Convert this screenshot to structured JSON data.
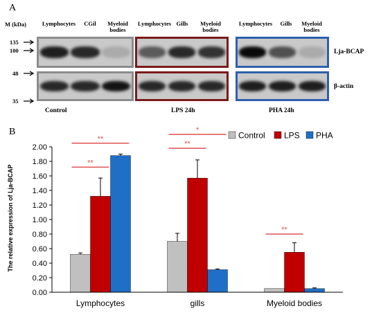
{
  "panel_a": {
    "letter": "A",
    "mw_header": "M (kDa)",
    "mw_markers": [
      "135",
      "100",
      "48",
      "35"
    ],
    "lane_headers": {
      "control": [
        "Lymphocytes",
        "CGil",
        "Myeloid bodies"
      ],
      "lps": [
        "Lymphocytes",
        "Gills",
        "Myeloid bodies"
      ],
      "pha": [
        "Lymphocytes",
        "Gills",
        "Myeloid bodies"
      ]
    },
    "row_labels": [
      "Lja-BCAP",
      "β-actin"
    ],
    "group_labels": [
      "Control",
      "LPS 24h",
      "PHA 24h"
    ],
    "box_colors": {
      "control": "#8c8c8c",
      "lps": "#7b1a1a",
      "pha": "#2e5fae"
    },
    "band_intensity": {
      "control_bcap": [
        0.85,
        0.8,
        0.15
      ],
      "control_actin": [
        0.8,
        0.8,
        0.9
      ],
      "lps_bcap": [
        0.55,
        0.8,
        0.75
      ],
      "lps_actin": [
        0.8,
        0.8,
        0.8
      ],
      "pha_bcap": [
        0.95,
        0.6,
        0.15
      ],
      "pha_actin": [
        0.85,
        0.85,
        0.85
      ]
    }
  },
  "panel_b": {
    "letter": "B"
  },
  "chart_data": {
    "type": "bar",
    "categories": [
      "Lymphocytes",
      "gills",
      "Myeloid bodies"
    ],
    "series": [
      {
        "name": "Control",
        "color": "#c0c0c0",
        "values": [
          0.52,
          0.7,
          0.05
        ],
        "errors": [
          0.02,
          0.11,
          0.0
        ]
      },
      {
        "name": "LPS",
        "color": "#c00000",
        "values": [
          1.32,
          1.57,
          0.55
        ],
        "errors": [
          0.25,
          0.25,
          0.13
        ]
      },
      {
        "name": "PHA",
        "color": "#1f6fc6",
        "values": [
          1.88,
          0.31,
          0.05
        ],
        "errors": [
          0.02,
          0.01,
          0.01
        ]
      }
    ],
    "ylabel": "The relative expression of Lja-BCAP",
    "xlabel": "",
    "ylim": [
      0,
      2.0
    ],
    "yticks": [
      "0.00",
      "0.20",
      "0.40",
      "0.60",
      "0.80",
      "1.00",
      "1.20",
      "1.40",
      "1.60",
      "1.80",
      "2.00"
    ],
    "legend_position": "top-right",
    "significance": [
      {
        "category": "Lymphocytes",
        "from": "Control",
        "to": "LPS",
        "label": "**"
      },
      {
        "category": "Lymphocytes",
        "from": "Control",
        "to": "PHA",
        "label": "**"
      },
      {
        "category": "gills",
        "from": "Control",
        "to": "LPS",
        "label": "**"
      },
      {
        "category": "gills",
        "from": "Control",
        "to": "PHA",
        "label": "*"
      },
      {
        "category": "Myeloid bodies",
        "from": "Control",
        "to": "LPS",
        "label": "**"
      }
    ]
  }
}
